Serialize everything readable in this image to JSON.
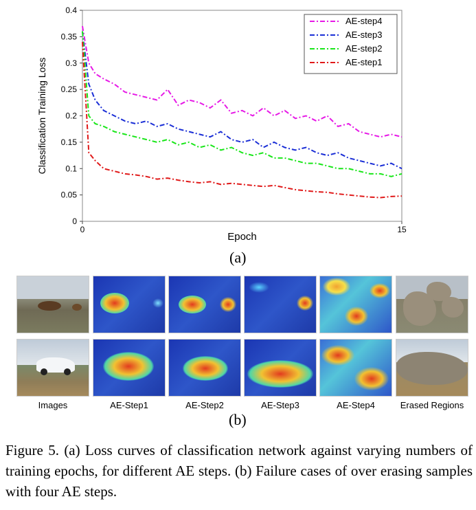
{
  "panel_a_label": "(a)",
  "panel_b_label": "(b)",
  "chart_data": {
    "type": "line",
    "title": "",
    "xlabel": "Epoch",
    "ylabel": "Classification Training Loss",
    "xlim": [
      0,
      15
    ],
    "ylim": [
      0,
      0.4
    ],
    "x_ticks": [
      "0",
      "15"
    ],
    "y_ticks": [
      "0",
      "0.05",
      "0.1",
      "0.15",
      "0.2",
      "0.25",
      "0.3",
      "0.35",
      "0.4"
    ],
    "legend_position": "top-right",
    "grid": false,
    "series": [
      {
        "name": "AE-step4",
        "color": "#e619e6",
        "x": [
          0,
          0.3,
          0.6,
          1,
          1.5,
          2,
          2.5,
          3,
          3.5,
          4,
          4.5,
          5,
          5.5,
          6,
          6.5,
          7,
          7.5,
          8,
          8.5,
          9,
          9.5,
          10,
          10.5,
          11,
          11.5,
          12,
          12.5,
          13,
          13.5,
          14,
          14.5,
          15
        ],
        "y": [
          0.37,
          0.3,
          0.28,
          0.27,
          0.26,
          0.245,
          0.24,
          0.235,
          0.23,
          0.25,
          0.22,
          0.23,
          0.225,
          0.215,
          0.23,
          0.205,
          0.21,
          0.2,
          0.215,
          0.2,
          0.21,
          0.195,
          0.2,
          0.19,
          0.2,
          0.18,
          0.185,
          0.17,
          0.165,
          0.16,
          0.165,
          0.16
        ]
      },
      {
        "name": "AE-step3",
        "color": "#1a2ed6",
        "x": [
          0,
          0.3,
          0.6,
          1,
          1.5,
          2,
          2.5,
          3,
          3.5,
          4,
          4.5,
          5,
          5.5,
          6,
          6.5,
          7,
          7.5,
          8,
          8.5,
          9,
          9.5,
          10,
          10.5,
          11,
          11.5,
          12,
          12.5,
          13,
          13.5,
          14,
          14.5,
          15
        ],
        "y": [
          0.36,
          0.26,
          0.23,
          0.21,
          0.2,
          0.19,
          0.185,
          0.19,
          0.18,
          0.185,
          0.175,
          0.17,
          0.165,
          0.16,
          0.17,
          0.155,
          0.15,
          0.155,
          0.14,
          0.15,
          0.14,
          0.135,
          0.14,
          0.13,
          0.125,
          0.13,
          0.12,
          0.115,
          0.11,
          0.105,
          0.11,
          0.1
        ]
      },
      {
        "name": "AE-step2",
        "color": "#19e619",
        "x": [
          0,
          0.3,
          0.6,
          1,
          1.5,
          2,
          2.5,
          3,
          3.5,
          4,
          4.5,
          5,
          5.5,
          6,
          6.5,
          7,
          7.5,
          8,
          8.5,
          9,
          9.5,
          10,
          10.5,
          11,
          11.5,
          12,
          12.5,
          13,
          13.5,
          14,
          14.5,
          15
        ],
        "y": [
          0.36,
          0.2,
          0.185,
          0.18,
          0.17,
          0.165,
          0.16,
          0.155,
          0.15,
          0.155,
          0.145,
          0.15,
          0.14,
          0.145,
          0.135,
          0.14,
          0.13,
          0.125,
          0.13,
          0.12,
          0.12,
          0.115,
          0.11,
          0.11,
          0.105,
          0.1,
          0.1,
          0.095,
          0.09,
          0.09,
          0.085,
          0.09
        ]
      },
      {
        "name": "AE-step1",
        "color": "#e01919",
        "x": [
          0,
          0.3,
          0.6,
          1,
          1.5,
          2,
          2.5,
          3,
          3.5,
          4,
          4.5,
          5,
          5.5,
          6,
          6.5,
          7,
          7.5,
          8,
          8.5,
          9,
          9.5,
          10,
          10.5,
          11,
          11.5,
          12,
          12.5,
          13,
          13.5,
          14,
          14.5,
          15
        ],
        "y": [
          0.34,
          0.13,
          0.115,
          0.1,
          0.095,
          0.09,
          0.088,
          0.085,
          0.08,
          0.082,
          0.078,
          0.075,
          0.073,
          0.075,
          0.07,
          0.072,
          0.07,
          0.068,
          0.066,
          0.068,
          0.064,
          0.06,
          0.058,
          0.056,
          0.055,
          0.052,
          0.05,
          0.048,
          0.046,
          0.045,
          0.047,
          0.048
        ]
      }
    ]
  },
  "panel_b": {
    "columns": [
      "Images",
      "AE-Step1",
      "AE-Step2",
      "AE-Step3",
      "AE-Step4",
      "Erased Regions"
    ]
  },
  "caption": "Figure 5. (a) Loss curves of classification network against varying numbers of training epochs, for different AE steps. (b) Failure cases of over erasing samples with four AE steps."
}
